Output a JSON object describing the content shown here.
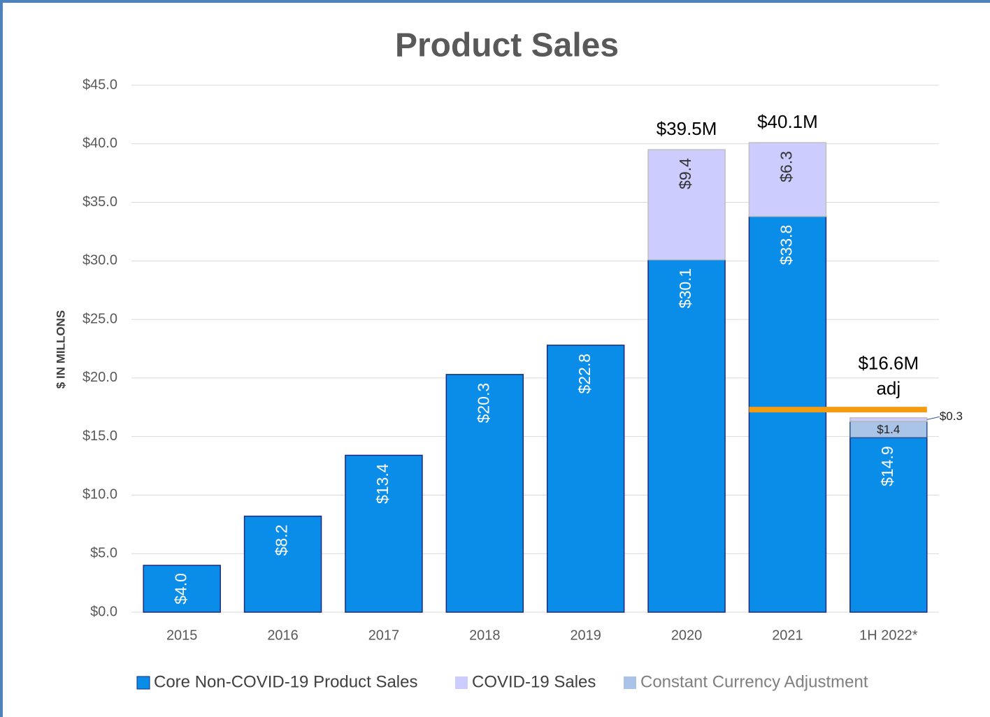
{
  "chart_data": {
    "type": "stacked_bar",
    "title": "Product Sales",
    "y_axis_label": "$ IN MILLONS",
    "categories": [
      "2015",
      "2016",
      "2017",
      "2018",
      "2019",
      "2020",
      "2021",
      "1H 2022*"
    ],
    "series": [
      {
        "name": "Core Non-COVID-19 Product Sales",
        "color": "#0a8ce9",
        "values": [
          4.0,
          8.2,
          13.4,
          20.3,
          22.8,
          30.1,
          33.8,
          14.9
        ],
        "value_labels": [
          "$4.0",
          "$8.2",
          "$13.4",
          "$20.3",
          "$22.8",
          "$30.1",
          "$33.8",
          "$14.9"
        ]
      },
      {
        "name": "COVID-19 Sales",
        "color": "#ccccff",
        "values": [
          null,
          null,
          null,
          null,
          null,
          9.4,
          6.3,
          0.3
        ],
        "value_labels": [
          null,
          null,
          null,
          null,
          null,
          "$9.4",
          "$6.3",
          "$0.3"
        ]
      },
      {
        "name": "Constant Currency Adjustment",
        "color": "#a9c4e6",
        "values": [
          null,
          null,
          null,
          null,
          null,
          null,
          null,
          1.4
        ],
        "value_labels": [
          null,
          null,
          null,
          null,
          null,
          null,
          null,
          "$1.4"
        ]
      }
    ],
    "totals": {
      "values": [
        null,
        null,
        null,
        null,
        null,
        39.5,
        40.1,
        16.6
      ],
      "value_labels": [
        null,
        null,
        null,
        null,
        null,
        "$39.5M",
        "$40.1M",
        "$16.6M"
      ]
    },
    "annotation": "adj",
    "reference_line": {
      "value": 17.3,
      "color": "#f39c12"
    },
    "ylim": [
      0,
      45
    ],
    "yticks": [
      {
        "value": 0,
        "label": "$0.0"
      },
      {
        "value": 5,
        "label": "$5.0"
      },
      {
        "value": 10,
        "label": "$10.0"
      },
      {
        "value": 15,
        "label": "$15.0"
      },
      {
        "value": 20,
        "label": "$20.0"
      },
      {
        "value": 25,
        "label": "$25.0"
      },
      {
        "value": 30,
        "label": "$30.0"
      },
      {
        "value": 35,
        "label": "$35.0"
      },
      {
        "value": 40,
        "label": "$40.0"
      },
      {
        "value": 45,
        "label": "$45.0"
      }
    ],
    "grid": true,
    "legend": "bottom"
  }
}
